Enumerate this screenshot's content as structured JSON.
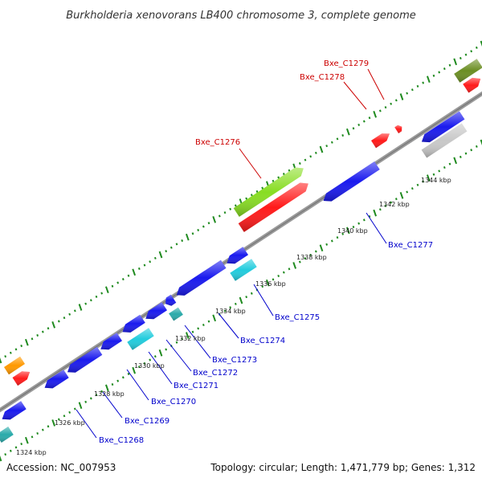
{
  "title": "Burkholderia xenovorans LB400 chromosome 3, complete genome",
  "footer": {
    "accession": "Accession: NC_007953",
    "summary": "Topology: circular; Length: 1,471,779 bp; Genes: 1,312"
  },
  "colors": {
    "backbone": "#7f7f7f",
    "tick": "#1f8a1f",
    "forward_label": "#cc0000",
    "reverse_label": "#0000cc",
    "leader_forward": "#cc0000",
    "leader_reverse": "#0000cc"
  },
  "scale_labels": [
    "1324 kbp",
    "1326 kbp",
    "1328 kbp",
    "1330 kbp",
    "1332 kbp",
    "1334 kbp",
    "1336 kbp",
    "1338 kbp",
    "1340 kbp",
    "1342 kbp",
    "1344 kbp"
  ],
  "gene_labels": {
    "forward": [
      "Bxe_C1276",
      "Bxe_C1278",
      "Bxe_C1279"
    ],
    "reverse": [
      "Bxe_C1268",
      "Bxe_C1269",
      "Bxe_C1270",
      "Bxe_C1271",
      "Bxe_C1272",
      "Bxe_C1273",
      "Bxe_C1274",
      "Bxe_C1275",
      "Bxe_C1277"
    ]
  },
  "feature_colors": {
    "cds_forward": "#ff1a1a",
    "cds_reverse": "#1a1aee",
    "gene_forward": "#88dd22",
    "gene_reverse": "#22ccdd",
    "gene_olive": "#6b8e23",
    "gene_grey": "#c8c8c8",
    "gene_orange": "#ff9900",
    "gene_teal": "#2aaaaa"
  }
}
